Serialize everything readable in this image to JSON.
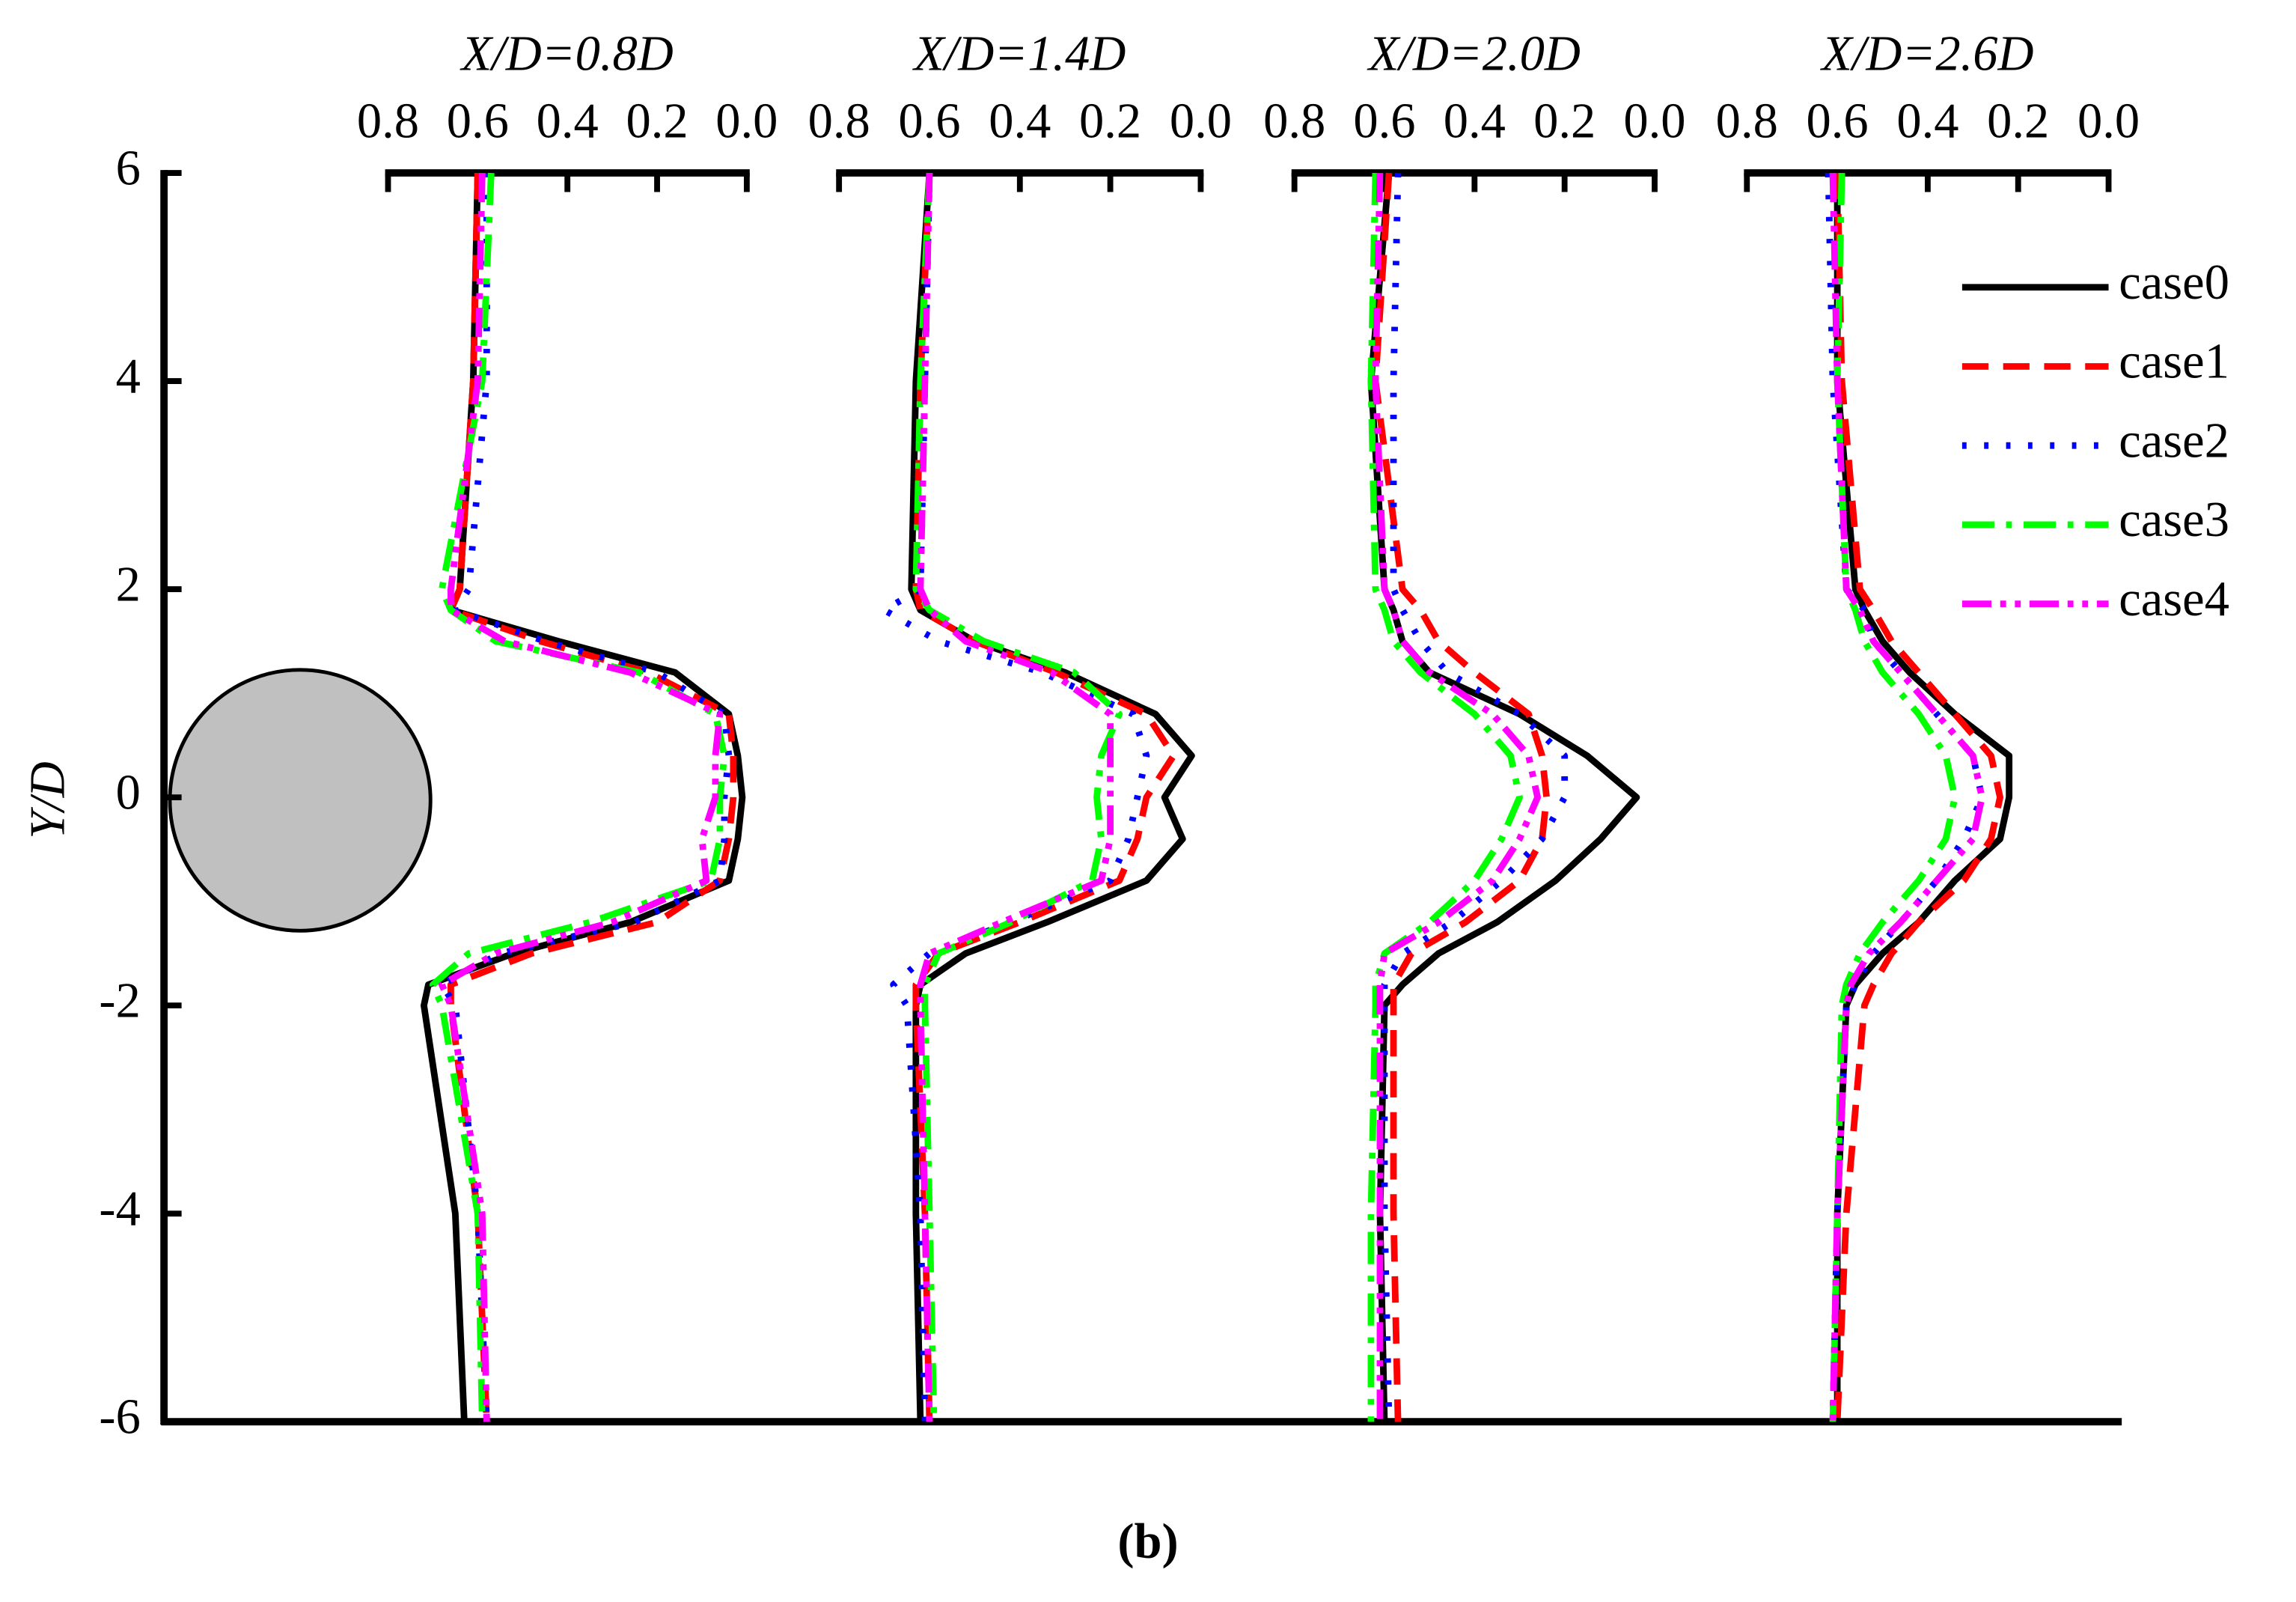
{
  "caption": "(b)",
  "chart_data": [
    {
      "type": "line",
      "title": "X/D=0.8D",
      "ylabel": "Y/D",
      "ylim": [
        -6,
        6
      ],
      "yticks": [
        -6,
        -4,
        -2,
        0,
        2,
        4,
        6
      ],
      "xlim": [
        0.8,
        0
      ],
      "xticks": [
        0.8,
        0.6,
        0.4,
        0.2,
        {
          "value": 0,
          "label": "0.0"
        }
      ],
      "legend": "upper right",
      "y": [
        6,
        4,
        2,
        1.8,
        1.5,
        1.2,
        0.8,
        0.4,
        0,
        -0.4,
        -0.8,
        -1.2,
        -1.5,
        -1.8,
        -2,
        -4,
        -6
      ],
      "series": [
        {
          "name": "case0",
          "color": "#000000",
          "dash": "solid",
          "values": [
            0.6,
            0.61,
            0.64,
            0.66,
            0.42,
            0.16,
            0.04,
            0.02,
            0.01,
            0.02,
            0.04,
            0.26,
            0.52,
            0.71,
            0.72,
            0.65,
            0.63
          ]
        },
        {
          "name": "case1",
          "color": "#ff0000",
          "dash": "dashed",
          "values": [
            0.6,
            0.61,
            0.64,
            0.66,
            0.46,
            0.22,
            0.04,
            0.03,
            0.03,
            0.04,
            0.06,
            0.2,
            0.48,
            0.66,
            0.66,
            0.6,
            0.58
          ]
        },
        {
          "name": "case2",
          "color": "#0000ff",
          "dash": "dotted",
          "values": [
            0.58,
            0.58,
            0.62,
            0.65,
            0.45,
            0.2,
            0.05,
            0.04,
            0.05,
            0.05,
            0.06,
            0.25,
            0.55,
            0.68,
            0.65,
            0.6,
            0.58
          ]
        },
        {
          "name": "case3",
          "color": "#00ff00",
          "dash": "dashdot",
          "values": [
            0.57,
            0.59,
            0.68,
            0.66,
            0.56,
            0.24,
            0.07,
            0.05,
            0.06,
            0.06,
            0.08,
            0.35,
            0.62,
            0.7,
            0.68,
            0.6,
            0.59
          ]
        },
        {
          "name": "case4",
          "color": "#ff00ff",
          "dash": "dashdotdot",
          "values": [
            0.59,
            0.6,
            0.66,
            0.66,
            0.54,
            0.26,
            0.06,
            0.07,
            0.07,
            0.1,
            0.09,
            0.3,
            0.56,
            0.68,
            0.66,
            0.59,
            0.58
          ]
        }
      ]
    },
    {
      "type": "line",
      "title": "X/D=1.4D",
      "xlim": [
        0.8,
        0
      ],
      "xticks": [
        0.8,
        0.6,
        0.4,
        0.2,
        {
          "value": 0,
          "label": "0.0"
        }
      ],
      "y": [
        6,
        4,
        2,
        1.8,
        1.5,
        1.2,
        0.8,
        0.4,
        0,
        -0.4,
        -0.8,
        -1.2,
        -1.5,
        -1.8,
        -2,
        -4,
        -6
      ],
      "series": [
        {
          "color": "#000000",
          "dash": "solid",
          "values": [
            0.6,
            0.63,
            0.64,
            0.62,
            0.5,
            0.3,
            0.1,
            0.02,
            0.08,
            0.04,
            0.12,
            0.34,
            0.52,
            0.62,
            0.63,
            0.63,
            0.62
          ]
        },
        {
          "color": "#ff0000",
          "dash": "dashed",
          "values": [
            0.6,
            0.62,
            0.63,
            0.62,
            0.5,
            0.32,
            0.12,
            0.06,
            0.12,
            0.14,
            0.18,
            0.4,
            0.58,
            0.63,
            0.63,
            0.61,
            0.6
          ]
        },
        {
          "color": "#0000ff",
          "dash": "dotted",
          "values": [
            0.6,
            0.61,
            0.62,
            0.7,
            0.58,
            0.35,
            0.15,
            0.12,
            0.14,
            0.16,
            0.2,
            0.42,
            0.6,
            0.68,
            0.65,
            0.62,
            0.61
          ]
        },
        {
          "color": "#00ff00",
          "dash": "dashdot",
          "values": [
            0.6,
            0.62,
            0.63,
            0.6,
            0.48,
            0.28,
            0.18,
            0.22,
            0.23,
            0.22,
            0.24,
            0.42,
            0.58,
            0.61,
            0.61,
            0.6,
            0.59
          ]
        },
        {
          "color": "#ff00ff",
          "dash": "dashdotdot",
          "values": [
            0.6,
            0.61,
            0.62,
            0.6,
            0.52,
            0.33,
            0.2,
            0.2,
            0.2,
            0.2,
            0.22,
            0.44,
            0.6,
            0.62,
            0.62,
            0.61,
            0.6
          ]
        }
      ]
    },
    {
      "type": "line",
      "title": "X/D=2.0D",
      "xlim": [
        0.8,
        0
      ],
      "xticks": [
        0.8,
        0.6,
        0.4,
        0.2,
        {
          "value": 0,
          "label": "0.0"
        }
      ],
      "y": [
        6,
        4,
        2,
        1.8,
        1.5,
        1.2,
        0.8,
        0.4,
        0,
        -0.4,
        -0.8,
        -1.2,
        -1.5,
        -1.8,
        -2,
        -4,
        -6
      ],
      "series": [
        {
          "color": "#000000",
          "dash": "solid",
          "values": [
            0.59,
            0.63,
            0.6,
            0.58,
            0.56,
            0.5,
            0.3,
            0.15,
            0.04,
            0.12,
            0.22,
            0.35,
            0.48,
            0.56,
            0.6,
            0.61,
            0.6
          ]
        },
        {
          "color": "#ff0000",
          "dash": "dashed",
          "values": [
            0.59,
            0.62,
            0.56,
            0.52,
            0.48,
            0.4,
            0.28,
            0.25,
            0.24,
            0.25,
            0.3,
            0.42,
            0.54,
            0.58,
            0.58,
            0.58,
            0.57
          ]
        },
        {
          "color": "#0000ff",
          "dash": "dotted",
          "values": [
            0.57,
            0.58,
            0.58,
            0.56,
            0.52,
            0.46,
            0.3,
            0.2,
            0.2,
            0.25,
            0.34,
            0.45,
            0.56,
            0.6,
            0.6,
            0.6,
            0.59
          ]
        },
        {
          "color": "#00ff00",
          "dash": "dashdot",
          "values": [
            0.62,
            0.63,
            0.62,
            0.6,
            0.58,
            0.52,
            0.4,
            0.32,
            0.3,
            0.34,
            0.4,
            0.5,
            0.6,
            0.62,
            0.62,
            0.63,
            0.63
          ]
        },
        {
          "color": "#ff00ff",
          "dash": "dashdotdot",
          "values": [
            0.61,
            0.62,
            0.6,
            0.58,
            0.56,
            0.5,
            0.36,
            0.28,
            0.26,
            0.3,
            0.36,
            0.48,
            0.6,
            0.61,
            0.61,
            0.61,
            0.61
          ]
        }
      ]
    },
    {
      "type": "line",
      "title": "X/D=2.6D",
      "xlim": [
        0.8,
        0
      ],
      "xticks": [
        0.8,
        0.6,
        0.4,
        0.2,
        {
          "value": 0,
          "label": "0.0"
        }
      ],
      "y": [
        6,
        4,
        2,
        1.8,
        1.5,
        1.2,
        0.8,
        0.4,
        0,
        -0.4,
        -0.8,
        -1.2,
        -1.5,
        -1.8,
        -2,
        -4,
        -6
      ],
      "series": [
        {
          "color": "#000000",
          "dash": "solid",
          "values": [
            0.6,
            0.6,
            0.56,
            0.54,
            0.5,
            0.44,
            0.34,
            0.22,
            0.22,
            0.24,
            0.34,
            0.42,
            0.5,
            0.56,
            0.58,
            0.6,
            0.6
          ]
        },
        {
          "color": "#ff0000",
          "dash": "dashed",
          "values": [
            0.6,
            0.59,
            0.55,
            0.52,
            0.48,
            0.42,
            0.34,
            0.26,
            0.24,
            0.26,
            0.32,
            0.42,
            0.48,
            0.52,
            0.54,
            0.58,
            0.6
          ]
        },
        {
          "color": "#0000ff",
          "dash": "dotted",
          "values": [
            0.62,
            0.61,
            0.58,
            0.54,
            0.52,
            0.46,
            0.38,
            0.3,
            0.28,
            0.32,
            0.38,
            0.46,
            0.52,
            0.56,
            0.58,
            0.6,
            0.61
          ]
        },
        {
          "color": "#00ff00",
          "dash": "dashdot",
          "values": [
            0.59,
            0.6,
            0.58,
            0.56,
            0.54,
            0.5,
            0.42,
            0.36,
            0.34,
            0.36,
            0.42,
            0.5,
            0.55,
            0.58,
            0.59,
            0.6,
            0.61
          ]
        },
        {
          "color": "#ff00ff",
          "dash": "dashdotdot",
          "values": [
            0.61,
            0.6,
            0.58,
            0.55,
            0.52,
            0.46,
            0.38,
            0.3,
            0.28,
            0.3,
            0.38,
            0.46,
            0.53,
            0.57,
            0.58,
            0.6,
            0.61
          ]
        }
      ]
    }
  ]
}
